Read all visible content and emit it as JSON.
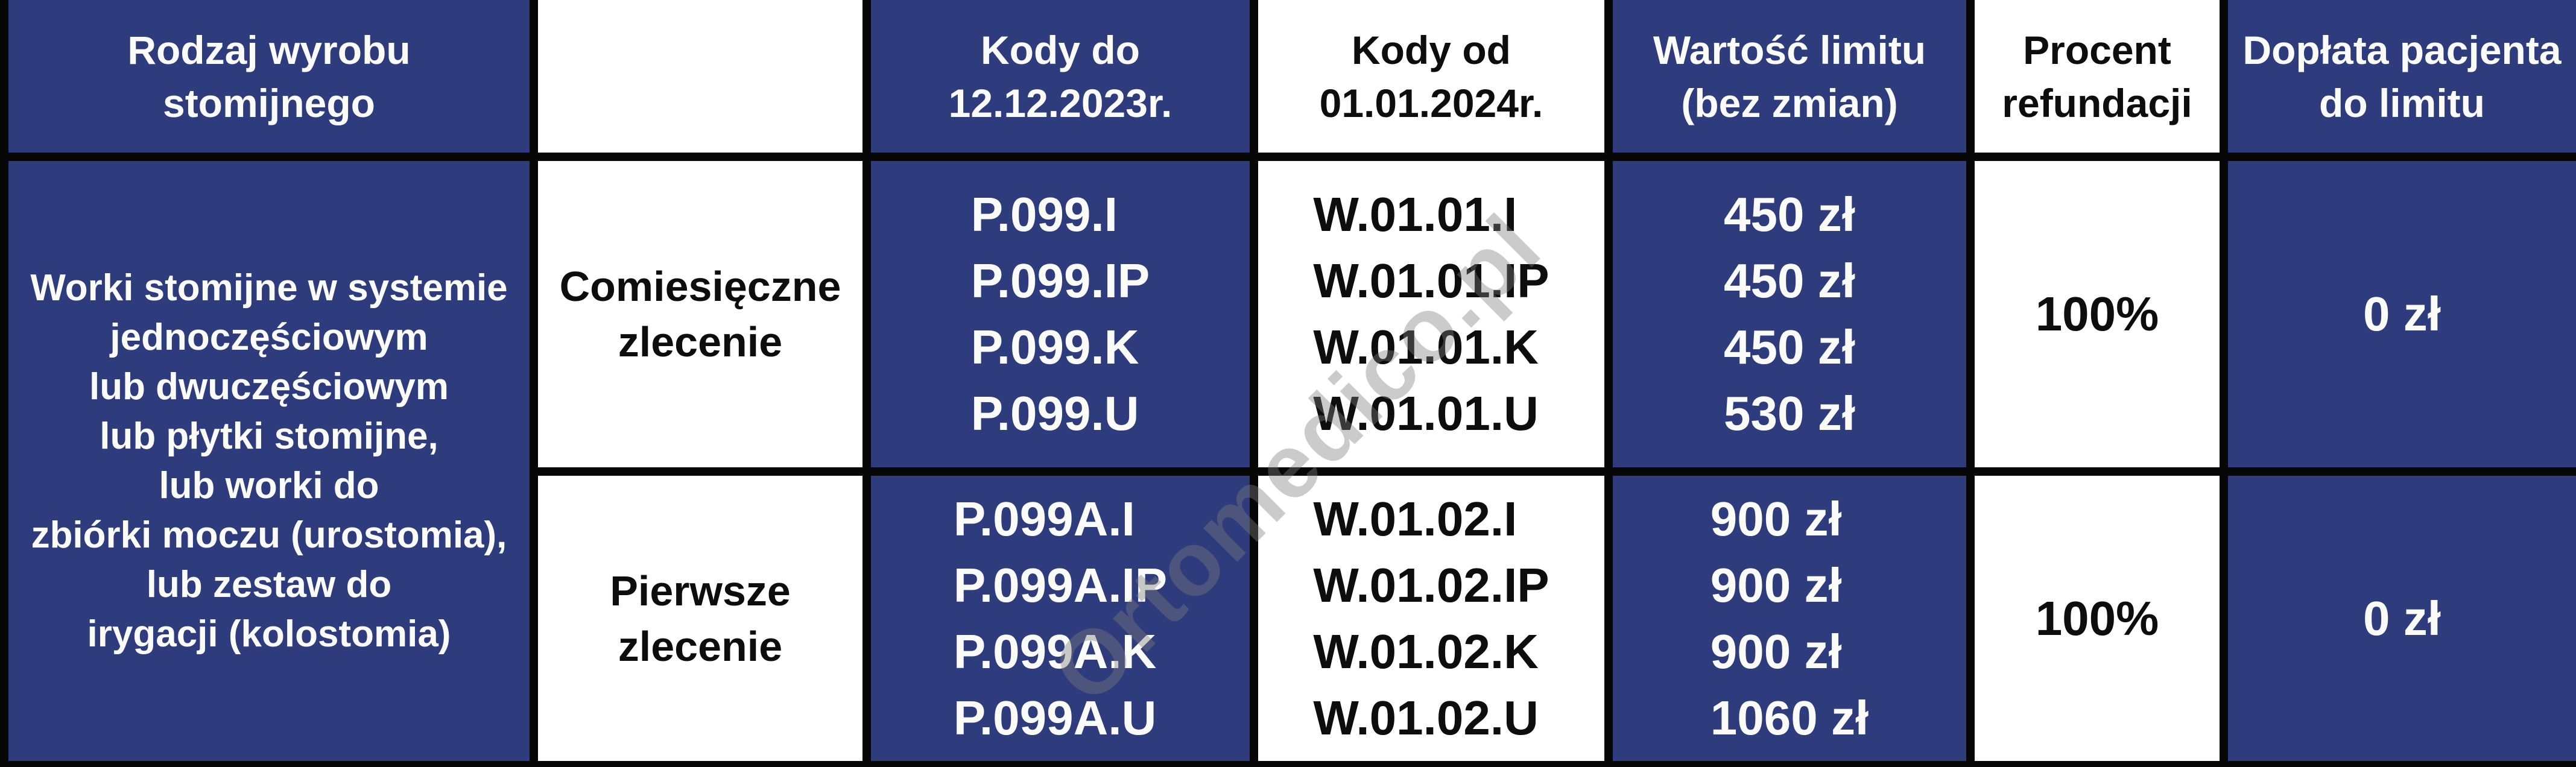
{
  "colors": {
    "navy": "#2e3b7d",
    "border_black": "#070707",
    "cell_white": "#ffffff",
    "text_white": "#fafaf8",
    "text_black": "#0d0d0d",
    "watermark_gray": "#7d7d7d"
  },
  "header": {
    "product_type": "Rodzaj wyrobu\nstomijnego",
    "blank": "",
    "codes_until": "Kody do\n12.12.2023r.",
    "codes_from": "Kody od\n01.01.2024r.",
    "limit_value": "Wartość limitu\n(bez zmian)",
    "refund_percent": "Procent\nrefundacji",
    "patient_copay": "Dopłata pacjenta\ndo limitu"
  },
  "product": {
    "description": "Worki stomijne w systemie\njednoczęściowym\nlub dwuczęściowym\nlub płytki stomijne,\nlub worki do\nzbiórki moczu (urostomia),\nlub zestaw do\nirygacji (kolostomia)"
  },
  "rows": [
    {
      "order_type": "Comiesięczne\nzlecenie",
      "codes_old": "P.099.I\nP.099.IP\nP.099.K\nP.099.U",
      "codes_new": "W.01.01.I\nW.01.01.IP\nW.01.01.K\nW.01.01.U",
      "limits": "450 zł\n450 zł\n450 zł\n530 zł",
      "refund": "100%",
      "copay": "0 zł"
    },
    {
      "order_type": "Pierwsze\nzlecenie",
      "codes_old": "P.099A.I\nP.099A.IP\nP.099A.K\nP.099A.U",
      "codes_new": "W.01.02.I\nW.01.02.IP\nW.01.02.K\nW.01.02.U",
      "limits": "900 zł\n900 zł\n900 zł\n1060 zł",
      "refund": "100%",
      "copay": "0 zł"
    }
  ],
  "watermark": "Ortomedico.pl"
}
